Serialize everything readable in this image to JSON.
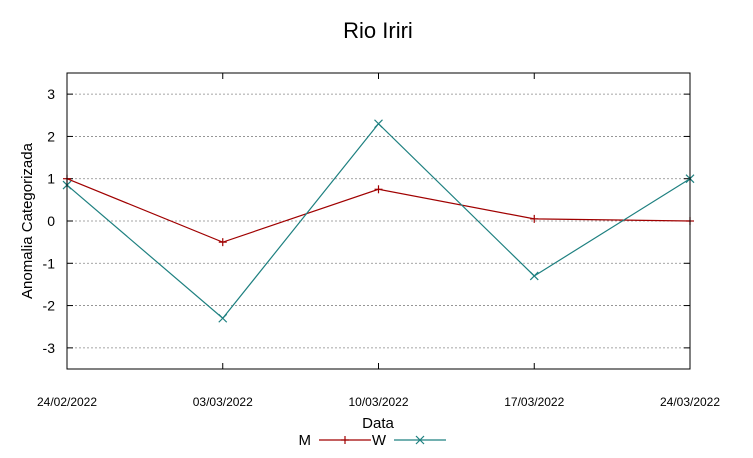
{
  "chart_data": {
    "type": "line",
    "title": "Rio Iriri",
    "xlabel": "Data",
    "ylabel": "Anomalia Categorizada",
    "categories": [
      "24/02/2022",
      "03/03/2022",
      "10/03/2022",
      "17/03/2022",
      "24/03/2022"
    ],
    "x": [
      "2022-02-24",
      "2022-03-03",
      "2022-03-10",
      "2022-03-17",
      "2022-03-24"
    ],
    "yticks": [
      "3",
      "2",
      "1",
      "0",
      "-1",
      "-2",
      "-3"
    ],
    "ylim": [
      -3.5,
      3.5
    ],
    "grid": "horizontal-dashed",
    "legend_position": "bottom",
    "series": [
      {
        "name": "M",
        "color": "#a00000",
        "marker": "plus",
        "values": [
          1.0,
          -0.5,
          0.75,
          0.05,
          0.0
        ]
      },
      {
        "name": "W",
        "color": "#1e8080",
        "marker": "x",
        "values": [
          0.85,
          -2.3,
          2.3,
          -1.3,
          1.0
        ]
      }
    ]
  }
}
